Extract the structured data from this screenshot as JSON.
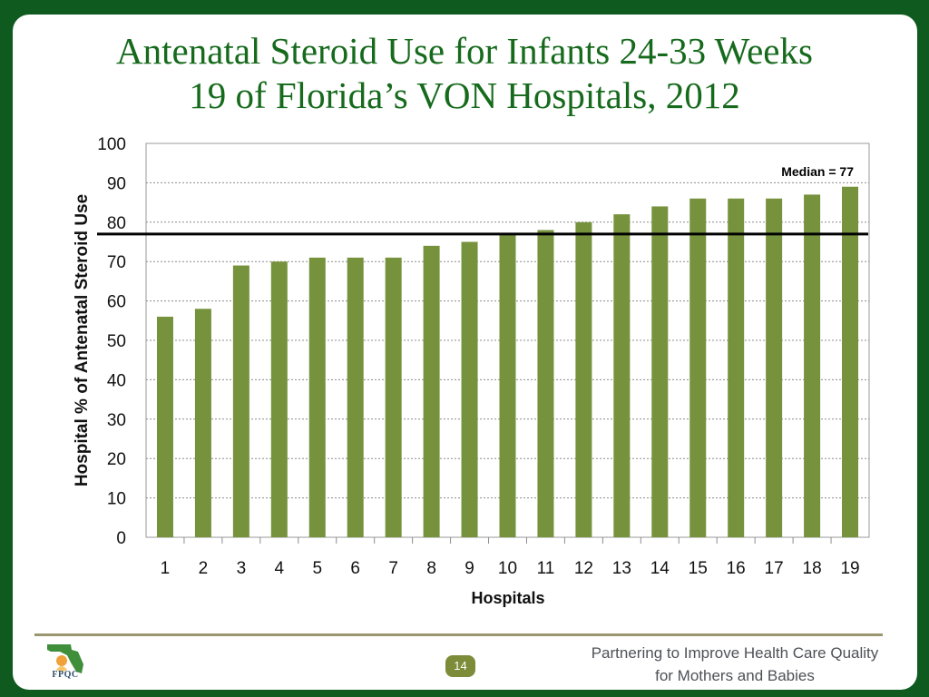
{
  "slide": {
    "title_line1": "Antenatal Steroid Use for Infants 24-33 Weeks",
    "title_line2": "19 of Florida’s VON Hospitals, 2012",
    "page_number": "14",
    "tagline_line1": "Partnering to Improve Health Care Quality",
    "tagline_line2": "for Mothers and Babies",
    "logo_text": "FPQC",
    "colors": {
      "background": "#0f5a1e",
      "title": "#166a1c",
      "bar": "#76923c",
      "page_badge": "#7c8c38"
    }
  },
  "chart_data": {
    "type": "bar",
    "title": "",
    "xlabel": "Hospitals",
    "ylabel": "Hospital % of Antenatal Steroid Use",
    "categories": [
      "1",
      "2",
      "3",
      "4",
      "5",
      "6",
      "7",
      "8",
      "9",
      "10",
      "11",
      "12",
      "13",
      "14",
      "15",
      "16",
      "17",
      "18",
      "19"
    ],
    "values": [
      56,
      58,
      69,
      70,
      71,
      71,
      71,
      74,
      75,
      77,
      78,
      80,
      82,
      84,
      86,
      86,
      86,
      87,
      89
    ],
    "ylim": [
      0,
      100
    ],
    "yticks": [
      0,
      10,
      20,
      30,
      40,
      50,
      60,
      70,
      80,
      90,
      100
    ],
    "grid": true,
    "reference_line": {
      "value": 77,
      "label": "Median  =  77"
    }
  }
}
